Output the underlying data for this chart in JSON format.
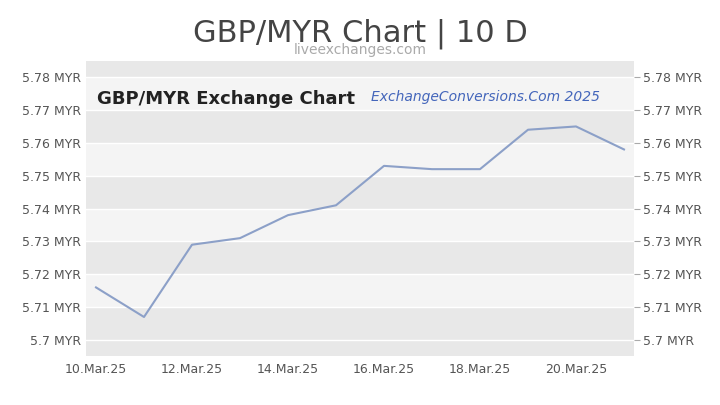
{
  "title": "GBP/MYR Chart | 10 D",
  "subtitle": "liveexchanges.com",
  "watermark": "ExchangeConversions.Com 2025",
  "inner_label": "GBP/MYR Exchange Chart",
  "x_labels": [
    "10.Mar.25",
    "12.Mar.25",
    "14.Mar.25",
    "16.Mar.25",
    "18.Mar.25",
    "20.Mar.25"
  ],
  "x_values": [
    0,
    1,
    2,
    3,
    4,
    5,
    6,
    7,
    8,
    9,
    10,
    11
  ],
  "y_values": [
    5.716,
    5.707,
    5.729,
    5.731,
    5.738,
    5.741,
    5.753,
    5.752,
    5.752,
    5.764,
    5.765,
    5.758
  ],
  "ylim": [
    5.695,
    5.785
  ],
  "yticks": [
    5.7,
    5.71,
    5.72,
    5.73,
    5.74,
    5.75,
    5.76,
    5.77,
    5.78
  ],
  "ytick_labels_left": [
    "5.7 MYR",
    "5.71 MYR",
    "5.72 MYR",
    "5.73 MYR",
    "5.74 MYR",
    "5.75 MYR",
    "5.76 MYR",
    "5.77 MYR",
    "5.78 MYR"
  ],
  "ytick_labels_right": [
    "5.7 MYR",
    "5.71 MYR",
    "5.72 MYR",
    "5.73 MYR",
    "5.74 MYR",
    "5.75 MYR",
    "5.76 MYR",
    "5.77 MYR",
    "5.78 MYR"
  ],
  "line_color": "#8ca0c8",
  "bg_color": "#ffffff",
  "band_colors": [
    "#e8e8e8",
    "#f4f4f4"
  ],
  "title_color": "#444444",
  "subtitle_color": "#aaaaaa",
  "label_color": "#555555",
  "watermark_color": "#4466bb",
  "inner_label_color": "#222222",
  "title_fontsize": 22,
  "subtitle_fontsize": 10,
  "tick_fontsize": 9,
  "inner_label_fontsize": 13,
  "watermark_fontsize": 10,
  "x_tick_positions": [
    0,
    2,
    4,
    6,
    8,
    10
  ],
  "xlim": [
    -0.2,
    11.2
  ]
}
